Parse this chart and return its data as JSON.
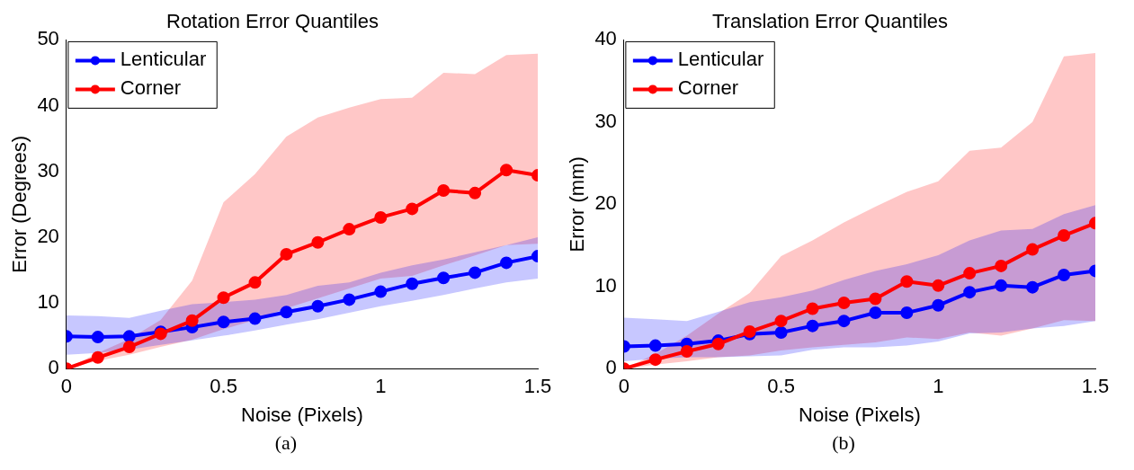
{
  "chart_data": [
    {
      "type": "line",
      "title": "Rotation Error Quantiles",
      "xlabel": "Noise (Pixels)",
      "ylabel": "Error (Degrees)",
      "annotations": [
        "(a)"
      ],
      "x": [
        0,
        0.1,
        0.2,
        0.3,
        0.4,
        0.5,
        0.6,
        0.7,
        0.8,
        0.9,
        1,
        1.1,
        1.2,
        1.3,
        1.4,
        1.5
      ],
      "series": [
        {
          "name": "Lenticular",
          "color": "#0000ff",
          "values": [
            4.9,
            4.8,
            4.9,
            5.6,
            6.3,
            7.1,
            7.6,
            8.6,
            9.5,
            10.5,
            11.7,
            12.9,
            13.8,
            14.6,
            16.1,
            17.1
          ],
          "lower": [
            2.1,
            2.4,
            2.9,
            3.6,
            4.3,
            5.0,
            5.8,
            6.7,
            7.5,
            8.5,
            9.5,
            10.3,
            11.2,
            12.2,
            13.1,
            13.7
          ],
          "upper": [
            8.1,
            8.0,
            7.7,
            8.8,
            9.8,
            10.1,
            10.5,
            11.2,
            12.6,
            13.1,
            14.6,
            15.7,
            16.6,
            17.7,
            18.8,
            20.0
          ]
        },
        {
          "name": "Corner",
          "color": "#ff0000",
          "values": [
            0,
            1.7,
            3.3,
            5.3,
            7.3,
            10.8,
            13.1,
            17.4,
            19.2,
            21.2,
            23.0,
            24.3,
            27.1,
            26.7,
            30.2,
            29.4
          ],
          "lower": [
            0,
            1.2,
            2.1,
            3.3,
            4.4,
            6.0,
            7.4,
            9.2,
            10.7,
            12.2,
            13.7,
            14.1,
            15.7,
            17.2,
            18.8,
            19.0
          ],
          "upper": [
            0,
            2.4,
            4.5,
            7.4,
            13.4,
            25.3,
            29.6,
            35.3,
            38.2,
            39.7,
            41.0,
            41.2,
            45.0,
            44.8,
            47.7,
            47.9
          ]
        }
      ],
      "xlim": [
        0,
        1.5
      ],
      "xticks": [
        0,
        0.5,
        1,
        1.5
      ],
      "ylim": [
        0,
        50
      ],
      "yticks": [
        0,
        10,
        20,
        30,
        40,
        50
      ],
      "grid": false,
      "legend": "top left",
      "marker": "circle",
      "line_style": "solid"
    },
    {
      "type": "line",
      "title": "Translation Error Quantiles",
      "xlabel": "Noise (Pixels)",
      "ylabel": "Error (mm)",
      "annotations": [
        "(b)"
      ],
      "x": [
        0,
        0.1,
        0.2,
        0.3,
        0.4,
        0.5,
        0.6,
        0.7,
        0.8,
        0.9,
        1,
        1.1,
        1.2,
        1.3,
        1.4,
        1.5
      ],
      "series": [
        {
          "name": "Lenticular",
          "color": "#0000ff",
          "values": [
            2.7,
            2.8,
            3.0,
            3.4,
            4.2,
            4.4,
            5.2,
            5.8,
            6.8,
            6.8,
            7.7,
            9.3,
            10.1,
            9.9,
            11.4,
            11.9
          ],
          "lower": [
            0.9,
            1.2,
            1.4,
            1.4,
            1.5,
            1.6,
            2.3,
            2.6,
            2.6,
            2.8,
            3.3,
            4.3,
            4.4,
            4.9,
            5.2,
            5.8
          ],
          "upper": [
            6.2,
            6.0,
            5.8,
            6.9,
            8.1,
            8.7,
            9.5,
            10.8,
            11.9,
            12.7,
            13.8,
            15.6,
            16.8,
            17.0,
            18.8,
            19.9
          ]
        },
        {
          "name": "Corner",
          "color": "#ff0000",
          "values": [
            0,
            1.1,
            2.1,
            3.0,
            4.5,
            5.8,
            7.3,
            8.0,
            8.5,
            10.6,
            10.1,
            11.6,
            12.5,
            14.5,
            16.2,
            17.7
          ],
          "lower": [
            0,
            0.5,
            0.9,
            1.4,
            1.6,
            2.2,
            2.6,
            2.9,
            3.2,
            3.8,
            3.6,
            4.4,
            4.0,
            4.9,
            5.9,
            5.8
          ],
          "upper": [
            0,
            1.8,
            4.0,
            6.7,
            9.2,
            13.7,
            15.6,
            17.8,
            19.7,
            21.5,
            22.8,
            26.5,
            26.9,
            30.0,
            38.0,
            38.4
          ]
        }
      ],
      "xlim": [
        0,
        1.5
      ],
      "xticks": [
        0,
        0.5,
        1,
        1.5
      ],
      "ylim": [
        0,
        40
      ],
      "yticks": [
        0,
        10,
        20,
        30,
        40
      ],
      "grid": false,
      "legend": "top left",
      "marker": "circle",
      "line_style": "solid"
    }
  ]
}
